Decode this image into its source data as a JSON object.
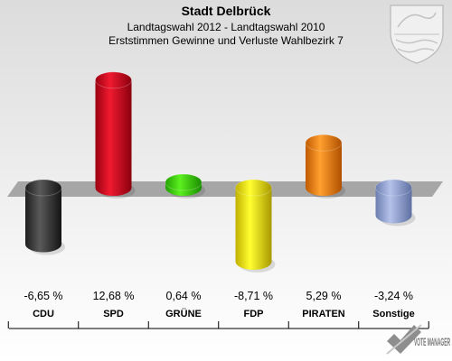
{
  "chart_data": {
    "type": "bar",
    "title": "Stadt Delbrück",
    "subtitle_lines": [
      "Landtagswahl 2012 - Landtagswahl 2010",
      "Erststimmen Gewinne und Verluste Wahlbezirk 7"
    ],
    "categories": [
      "CDU",
      "SPD",
      "GRÜNE",
      "FDP",
      "PIRATEN",
      "Sonstige"
    ],
    "values": [
      -6.65,
      12.68,
      0.64,
      -8.71,
      5.29,
      -3.24
    ],
    "value_labels": [
      "-6,65 %",
      "12,68 %",
      "0,64 %",
      "-8,71 %",
      "5,29 %",
      "-3,24 %"
    ],
    "colors": [
      "#3a3a3a",
      "#d0021b",
      "#3ecf0a",
      "#f0e000",
      "#f07800",
      "#8c9ed0"
    ],
    "xlabel": "",
    "ylabel": "",
    "grid": false
  },
  "branding": {
    "watermark_text": "VOTE MANAGER"
  }
}
